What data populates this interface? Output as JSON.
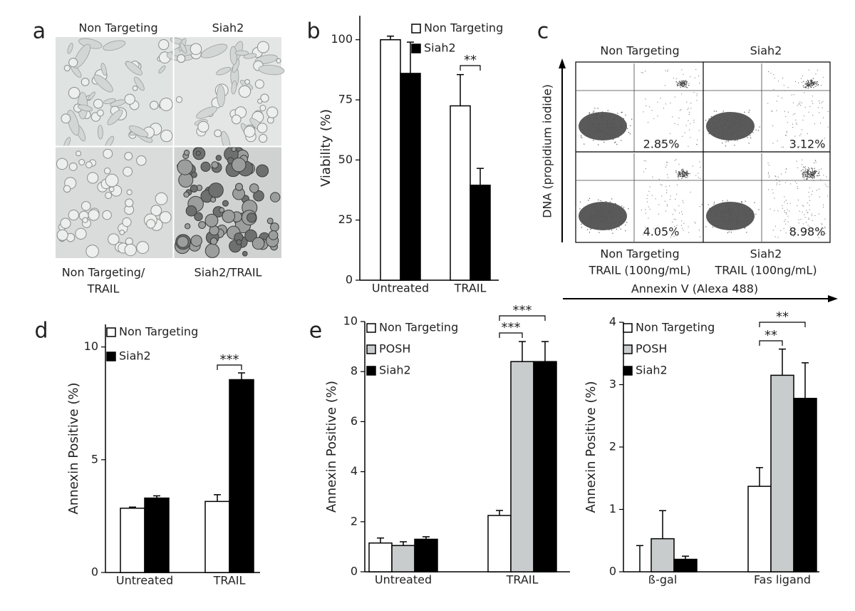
{
  "panel_a": {
    "letter": "a",
    "top_labels": [
      "Non Targeting",
      "Siah2"
    ],
    "bottom_labels": [
      [
        "Non Targeting/",
        "TRAIL"
      ],
      [
        "Siah2/TRAIL"
      ]
    ]
  },
  "panel_c": {
    "letter": "c",
    "column_labels": [
      "Non Targeting",
      "Siah2"
    ],
    "percentages": [
      "2.85%",
      "3.12%",
      "4.05%",
      "8.98%"
    ],
    "bottom_labels": [
      [
        "Non Targeting",
        "TRAIL (100ng/mL)"
      ],
      [
        "Siah2",
        "TRAIL (100ng/mL)"
      ]
    ],
    "y_label": "DNA (propidium iodide)",
    "x_label": "Annexin V (Alexa 488)"
  },
  "chart_data": [
    {
      "type": "bar",
      "panel_label": "b",
      "y_label": "Viability (%)",
      "categories": [
        "Untreated",
        "TRAIL"
      ],
      "series": [
        {
          "name": "Non Targeting",
          "color": "#ffffff",
          "values": [
            100,
            72.5
          ],
          "errors": [
            1.5,
            13
          ]
        },
        {
          "name": "Siah2",
          "color": "#000000",
          "values": [
            86,
            39.5
          ],
          "errors": [
            13,
            7
          ]
        }
      ],
      "ylim": [
        0,
        110
      ],
      "yticks": [
        0,
        25,
        50,
        75,
        100
      ],
      "annotations": [
        "**"
      ]
    },
    {
      "type": "bar",
      "panel_label": "d",
      "y_label": "Annexin Positive (%)",
      "categories": [
        "Untreated",
        "TRAIL"
      ],
      "series": [
        {
          "name": "Non Targeting",
          "color": "#ffffff",
          "values": [
            2.85,
            3.15
          ],
          "errors": [
            0.05,
            0.3
          ]
        },
        {
          "name": "Siah2",
          "color": "#000000",
          "values": [
            3.3,
            8.55
          ],
          "errors": [
            0.1,
            0.3
          ]
        }
      ],
      "ylim": [
        0,
        11
      ],
      "yticks": [
        0,
        5,
        10
      ],
      "annotations": [
        "***"
      ]
    },
    {
      "type": "bar",
      "panel_label": "e",
      "y_label": "Annexin Positive (%)",
      "categories": [
        "Untreated",
        "TRAIL"
      ],
      "series": [
        {
          "name": "Non Targeting",
          "color": "#ffffff",
          "values": [
            1.15,
            2.25
          ],
          "errors": [
            0.2,
            0.2
          ]
        },
        {
          "name": "POSH",
          "color": "#c8cccc",
          "values": [
            1.05,
            8.4
          ],
          "errors": [
            0.15,
            0.8
          ]
        },
        {
          "name": "Siah2",
          "color": "#000000",
          "values": [
            1.3,
            8.4
          ],
          "errors": [
            0.1,
            0.8
          ]
        }
      ],
      "ylim": [
        0,
        10
      ],
      "yticks": [
        0,
        2,
        4,
        6,
        8,
        10
      ],
      "annotations": [
        "***",
        "***"
      ]
    },
    {
      "type": "bar",
      "y_label": "Annexin Positive (%)",
      "categories": [
        "ß-gal",
        "Fas ligand"
      ],
      "series": [
        {
          "name": "Non Targeting",
          "color": "#ffffff",
          "values": [
            0,
            1.37
          ],
          "errors": [
            0.42,
            0.3
          ]
        },
        {
          "name": "POSH",
          "color": "#c8cccc",
          "values": [
            0.53,
            3.15
          ],
          "errors": [
            0.45,
            0.42
          ]
        },
        {
          "name": "Siah2",
          "color": "#000000",
          "values": [
            0.2,
            2.78
          ],
          "errors": [
            0.05,
            0.57
          ]
        }
      ],
      "ylim": [
        0,
        4
      ],
      "yticks": [
        0,
        1,
        2,
        3,
        4
      ],
      "annotations": [
        "**",
        "**"
      ]
    }
  ]
}
